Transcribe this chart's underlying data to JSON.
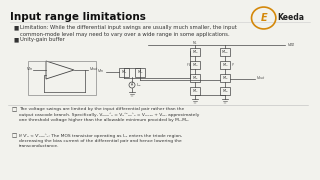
{
  "title": "Input range limitations",
  "bg_color": "#f2f2ed",
  "title_color": "#111111",
  "bullet1": "Limitation: While the differential input swings are usually much smaller, the input\ncommon-mode level may need to vary over a wide range in some applications.",
  "bullet2": "Unity-gain buffer",
  "note1": "The voltage swings are limited by the input differential pair rather than the\noutput cascode branch. Specifically, Vₘ,ₘᴬₙ = Vₔᴬᵀ,ₘᴬₙ = Vₘₙ₁₂ + Vₜₚ, approximately\none threshold voltage higher than the allowable minimum provided by M₇-M₈.",
  "note2": "If Vᴵₙ < Vᴵₙ,ₘᴬₙ: The MOS transistor operating as Iₛₛ enters the triode region,\ndecreasing the bias current of the differential pair and hence lowering the\ntransconductance.",
  "keeda_color": "#d4880a",
  "text_color": "#333333",
  "circuit_color": "#444444",
  "line_color": "#555555"
}
